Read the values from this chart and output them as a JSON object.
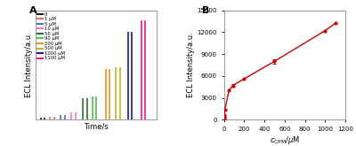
{
  "panel_A": {
    "xlabel": "Time/s",
    "ylabel": "ECL Intensity/a.u.",
    "concentrations": [
      0,
      1,
      5,
      10,
      50,
      90,
      200,
      500,
      1000,
      1100
    ],
    "colors": [
      "#1a1a1a",
      "#e87060",
      "#4f70c8",
      "#e878c0",
      "#217a21",
      "#50c050",
      "#e89020",
      "#b8b820",
      "#1818a0",
      "#e8189a"
    ],
    "peak_heights": [
      0.018,
      0.032,
      0.048,
      0.075,
      0.21,
      0.23,
      0.5,
      0.52,
      0.87,
      0.98
    ],
    "group_x": [
      [
        4,
        7
      ],
      [
        11,
        14
      ],
      [
        19,
        22
      ],
      [
        27,
        30
      ],
      [
        36,
        39
      ],
      [
        43,
        46
      ],
      [
        53,
        56
      ],
      [
        61,
        64
      ],
      [
        70,
        73
      ],
      [
        80,
        83
      ]
    ],
    "ylim": [
      0,
      1.08
    ],
    "xlim": [
      0,
      92
    ]
  },
  "panel_B": {
    "xlabel": "$c_{\\mathrm{CPM}}$/$\\mu$M",
    "ylabel": "ECL Intensity/a.u.",
    "x_data": [
      0,
      1,
      5,
      10,
      50,
      90,
      200,
      500,
      1000,
      1100
    ],
    "y_data": [
      100,
      350,
      700,
      1400,
      4000,
      4700,
      5600,
      8000,
      12200,
      13200
    ],
    "error_x": [
      90,
      500
    ],
    "error_y": [
      4700,
      8000
    ],
    "error_vals": [
      180,
      280
    ],
    "color": "#cc0000",
    "ylim": [
      0,
      15000
    ],
    "xlim": [
      0,
      1200
    ],
    "yticks": [
      0,
      3000,
      6000,
      9000,
      12000,
      15000
    ],
    "xticks": [
      0,
      200,
      400,
      600,
      800,
      1000,
      1200
    ]
  }
}
